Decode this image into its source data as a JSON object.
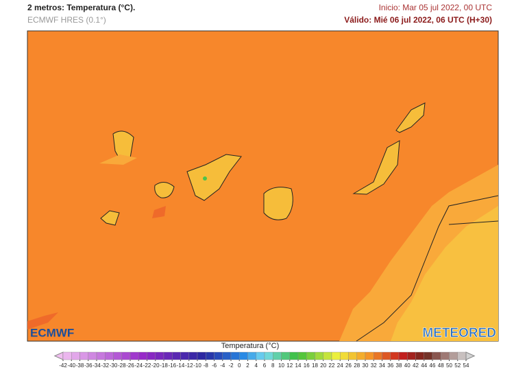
{
  "header": {
    "title": "2 metros: Temperatura (°C).",
    "model": "ECMWF HRES (0.1°)",
    "init": "Inicio: Mar 05 jul 2022, 00 UTC",
    "valid": "Válido: Mié 06 jul 2022, 06 UTC (H+30)"
  },
  "map": {
    "logo_left": "ECMWF",
    "logo_right": "METEORED"
  },
  "legend": {
    "title": "Temperatura (°C)",
    "ticks": [
      -42,
      -40,
      -38,
      -36,
      -34,
      -32,
      -30,
      -28,
      -26,
      -24,
      -22,
      -20,
      -18,
      -16,
      -14,
      -12,
      -10,
      -8,
      -6,
      -4,
      -2,
      0,
      2,
      4,
      6,
      8,
      10,
      12,
      14,
      16,
      18,
      20,
      22,
      24,
      26,
      28,
      30,
      32,
      34,
      36,
      38,
      40,
      42,
      44,
      46,
      48,
      50,
      52,
      54
    ]
  }
}
